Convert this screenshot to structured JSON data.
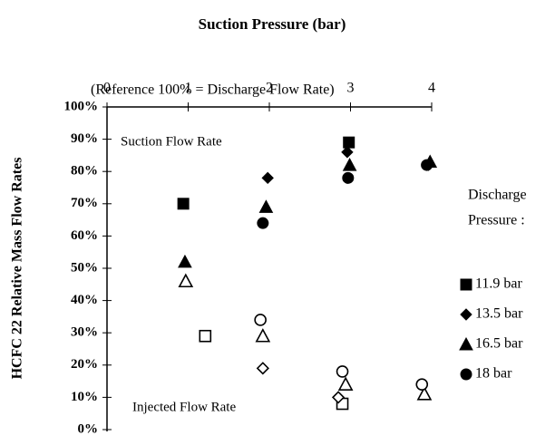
{
  "chart_data": {
    "type": "scatter",
    "title": "Suction Pressure (bar)",
    "ylabel": "HCFC 22 Relative Mass Flow Rates",
    "annotations": [
      "(Reference 100% = Discharge Flow Rate)",
      "Suction Flow Rate",
      "Injected Flow Rate"
    ],
    "legend_title": [
      "Discharge",
      "Pressure :"
    ],
    "color": "#000000",
    "xlim": [
      0,
      4
    ],
    "xticks": [
      0,
      1,
      2,
      3,
      4
    ],
    "ylim": [
      0,
      100
    ],
    "yticks": [
      {
        "value": 0,
        "label": "0%"
      },
      {
        "value": 10,
        "label": "10%"
      },
      {
        "value": 20,
        "label": "20%"
      },
      {
        "value": 30,
        "label": "30%"
      },
      {
        "value": 40,
        "label": "40%"
      },
      {
        "value": 50,
        "label": "50%"
      },
      {
        "value": 60,
        "label": "60%"
      },
      {
        "value": 70,
        "label": "70%"
      },
      {
        "value": 80,
        "label": "80%"
      },
      {
        "value": 90,
        "label": "90%"
      },
      {
        "value": 100,
        "label": "100%"
      }
    ],
    "series": [
      {
        "name": "11.9 bar",
        "marker": "square",
        "x": [
          0.94,
          2.98
        ],
        "values": [
          70,
          89
        ],
        "injected_x": [
          1.21,
          2.9
        ],
        "injected_values": [
          29,
          8
        ]
      },
      {
        "name": "13.5 bar",
        "marker": "diamond",
        "x": [
          1.98,
          2.96,
          3.96
        ],
        "values": [
          78,
          86,
          82
        ],
        "injected_x": [
          1.92,
          2.85
        ],
        "injected_values": [
          19,
          10
        ]
      },
      {
        "name": "16.5 bar",
        "marker": "triangle",
        "x": [
          0.96,
          1.96,
          2.99,
          3.98
        ],
        "values": [
          52,
          69,
          82,
          83
        ],
        "injected_x": [
          0.97,
          1.92,
          2.94,
          3.91
        ],
        "injected_values": [
          46,
          29,
          14,
          11
        ]
      },
      {
        "name": "18 bar",
        "marker": "circle",
        "x": [
          1.92,
          2.97,
          3.94
        ],
        "values": [
          64,
          78,
          82
        ],
        "injected_x": [
          1.89,
          2.9,
          3.88
        ],
        "injected_values": [
          34,
          18,
          14
        ]
      }
    ]
  }
}
